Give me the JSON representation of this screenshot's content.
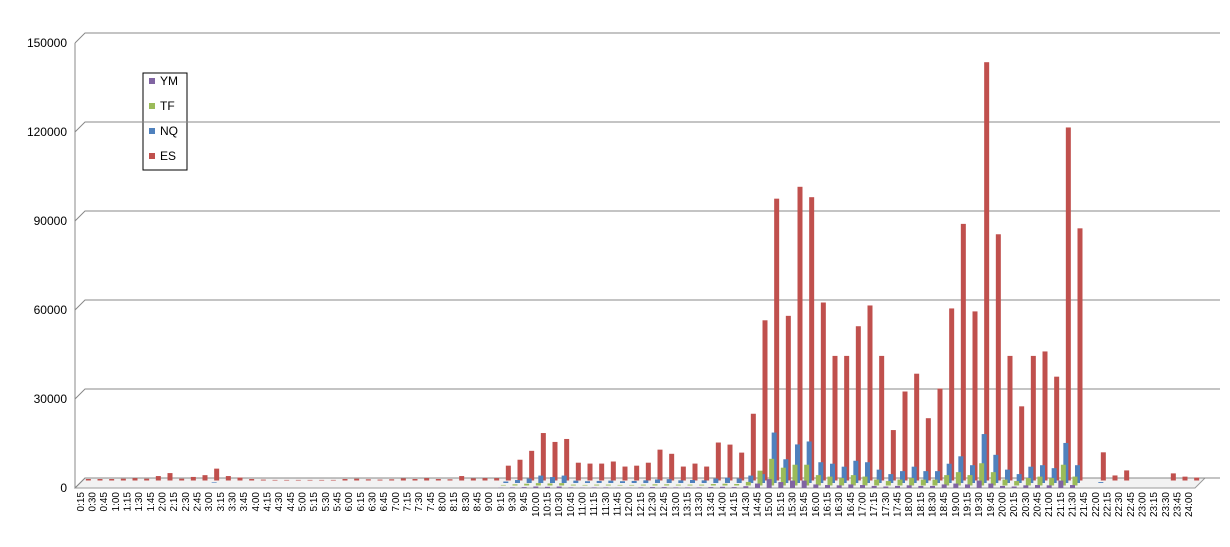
{
  "chart_data": {
    "type": "bar3d",
    "categories": [
      "0:15",
      "0:30",
      "0:45",
      "1:00",
      "1:15",
      "1:30",
      "1:45",
      "2:00",
      "2:15",
      "2:30",
      "2:45",
      "3:00",
      "3:15",
      "3:30",
      "3:45",
      "4:00",
      "4:15",
      "4:30",
      "4:45",
      "5:00",
      "5:15",
      "5:30",
      "5:45",
      "6:00",
      "6:15",
      "6:30",
      "6:45",
      "7:00",
      "7:15",
      "7:30",
      "7:45",
      "8:00",
      "8:15",
      "8:30",
      "8:45",
      "9:00",
      "9:15",
      "9:30",
      "9:45",
      "10:00",
      "10:15",
      "10:30",
      "10:45",
      "11:00",
      "11:15",
      "11:30",
      "11:45",
      "12:00",
      "12:15",
      "12:30",
      "12:45",
      "13:00",
      "13:15",
      "13:30",
      "13:45",
      "14:00",
      "14:15",
      "14:30",
      "14:45",
      "15:00",
      "15:15",
      "15:30",
      "15:45",
      "16:00",
      "16:15",
      "16:30",
      "16:45",
      "17:00",
      "17:15",
      "17:30",
      "17:45",
      "18:00",
      "18:15",
      "18:30",
      "18:45",
      "19:00",
      "19:15",
      "19:30",
      "19:45",
      "20:00",
      "20:15",
      "20:30",
      "20:45",
      "21:00",
      "21:15",
      "21:30",
      "21:45",
      "22:00",
      "22:15",
      "22:30",
      "22:45",
      "23:00",
      "23:15",
      "23:30",
      "23:45",
      "24:00"
    ],
    "series": [
      {
        "name": "YM",
        "color": "#8064a2",
        "values": [
          0,
          0,
          0,
          0,
          0,
          0,
          0,
          0,
          0,
          0,
          0,
          0,
          0,
          0,
          0,
          0,
          0,
          0,
          0,
          0,
          0,
          0,
          0,
          0,
          0,
          0,
          0,
          0,
          0,
          0,
          0,
          0,
          0,
          0,
          0,
          0,
          100,
          200,
          300,
          500,
          400,
          500,
          200,
          100,
          200,
          200,
          100,
          100,
          200,
          300,
          300,
          200,
          200,
          200,
          300,
          400,
          300,
          600,
          1500,
          3000,
          2000,
          2500,
          2500,
          1200,
          1000,
          900,
          1200,
          1000,
          700,
          500,
          700,
          900,
          700,
          700,
          1200,
          1500,
          1200,
          2500,
          1500,
          700,
          500,
          900,
          1000,
          900,
          2500,
          1000,
          0,
          0,
          0,
          0,
          0,
          0,
          0,
          0,
          0,
          0
        ]
      },
      {
        "name": "TF",
        "color": "#9bbb59",
        "values": [
          0,
          0,
          0,
          0,
          0,
          0,
          0,
          0,
          0,
          0,
          0,
          0,
          0,
          0,
          0,
          0,
          0,
          0,
          0,
          0,
          0,
          0,
          0,
          0,
          0,
          0,
          0,
          0,
          0,
          0,
          0,
          0,
          0,
          0,
          0,
          0,
          200,
          400,
          600,
          800,
          700,
          800,
          300,
          200,
          300,
          300,
          200,
          200,
          300,
          400,
          400,
          300,
          300,
          300,
          500,
          600,
          500,
          1200,
          5000,
          9000,
          6000,
          7000,
          7000,
          3500,
          3000,
          2500,
          3500,
          3000,
          2000,
          1500,
          2000,
          2500,
          2000,
          2000,
          3500,
          4500,
          3500,
          7500,
          4500,
          2000,
          1500,
          2500,
          3000,
          2500,
          7000,
          3000,
          0,
          0,
          0,
          0,
          0,
          0,
          0,
          0,
          0,
          0
        ]
      },
      {
        "name": "NQ",
        "color": "#4f81bd",
        "values": [
          0,
          0,
          0,
          0,
          0,
          0,
          0,
          0,
          0,
          0,
          0,
          200,
          0,
          0,
          0,
          0,
          0,
          0,
          0,
          0,
          0,
          0,
          0,
          0,
          0,
          0,
          0,
          0,
          0,
          0,
          0,
          0,
          0,
          0,
          0,
          0,
          500,
          1000,
          1500,
          2500,
          2000,
          2500,
          800,
          600,
          700,
          800,
          600,
          700,
          900,
          1200,
          1300,
          900,
          1000,
          900,
          1500,
          1800,
          1500,
          2500,
          3000,
          17000,
          8000,
          13000,
          14000,
          7000,
          6500,
          5500,
          7500,
          7000,
          4500,
          3000,
          4000,
          5500,
          4000,
          4000,
          6500,
          9000,
          6000,
          16500,
          9500,
          4500,
          3000,
          5500,
          6000,
          5000,
          13500,
          6000,
          0,
          300,
          0,
          0,
          0,
          0,
          0,
          0,
          0,
          0
        ]
      },
      {
        "name": "ES",
        "color": "#c0504d",
        "values": [
          500,
          500,
          500,
          600,
          800,
          600,
          1500,
          2500,
          600,
          1200,
          1800,
          4000,
          1500,
          1000,
          500,
          300,
          200,
          200,
          200,
          200,
          200,
          200,
          500,
          600,
          400,
          300,
          400,
          700,
          500,
          800,
          500,
          400,
          1500,
          700,
          800,
          800,
          5000,
          7000,
          10000,
          16000,
          13000,
          14000,
          6000,
          5700,
          5700,
          6400,
          4700,
          5000,
          6000,
          10400,
          9000,
          4700,
          5700,
          4700,
          12800,
          12100,
          9400,
          22500,
          54000,
          95000,
          55500,
          99000,
          95500,
          60000,
          42000,
          42000,
          52000,
          59000,
          42000,
          17000,
          30000,
          36000,
          21000,
          31000,
          58000,
          86500,
          57000,
          141000,
          83000,
          42000,
          25000,
          42000,
          43500,
          35000,
          119000,
          85000,
          0,
          9500,
          1700,
          3400,
          0,
          0,
          0,
          2400,
          1300,
          1000
        ]
      }
    ],
    "ylim": [
      0,
      150000
    ],
    "yticks": [
      0,
      30000,
      60000,
      90000,
      120000,
      150000
    ],
    "grid": true
  }
}
